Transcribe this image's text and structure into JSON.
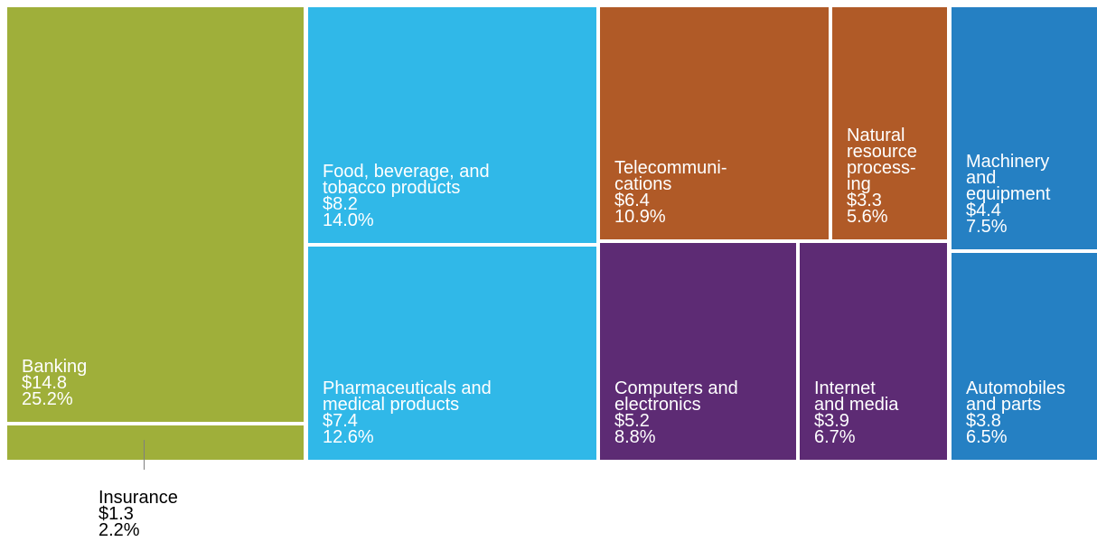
{
  "chart_data": {
    "type": "treemap",
    "unit_prefix": "$",
    "tiles": [
      {
        "key": "banking",
        "label_lines": [
          "Banking"
        ],
        "value": "$14.8",
        "share": "25.2%",
        "color": "#9faf3a"
      },
      {
        "key": "insurance",
        "label_lines": [
          "Insurance"
        ],
        "value": "$1.3",
        "share": "2.2%",
        "color": "#9faf3a",
        "label_outside": true
      },
      {
        "key": "food",
        "label_lines": [
          "Food, beverage, and",
          "tobacco products"
        ],
        "value": "$8.2",
        "share": "14.0%",
        "color": "#30b8e8"
      },
      {
        "key": "pharma",
        "label_lines": [
          "Pharmaceuticals and",
          "medical products"
        ],
        "value": "$7.4",
        "share": "12.6%",
        "color": "#30b8e8"
      },
      {
        "key": "telecom",
        "label_lines": [
          "Telecommuni-",
          "cations"
        ],
        "value": "$6.4",
        "share": "10.9%",
        "color": "#b05a27"
      },
      {
        "key": "natural",
        "label_lines": [
          "Natural",
          "resource",
          "process-",
          "ing"
        ],
        "value": "$3.3",
        "share": "5.6%",
        "color": "#b05a27"
      },
      {
        "key": "computers",
        "label_lines": [
          "Computers and",
          "electronics"
        ],
        "value": "$5.2",
        "share": "8.8%",
        "color": "#5d2b74"
      },
      {
        "key": "internet",
        "label_lines": [
          "Internet",
          "and media"
        ],
        "value": "$3.9",
        "share": "6.7%",
        "color": "#5d2b74"
      },
      {
        "key": "machinery",
        "label_lines": [
          "Machinery",
          "and",
          "equipment"
        ],
        "value": "$4.4",
        "share": "7.5%",
        "color": "#2580c3"
      },
      {
        "key": "automobiles",
        "label_lines": [
          "Automobiles",
          "and parts"
        ],
        "value": "$3.8",
        "share": "6.5%",
        "color": "#2580c3"
      }
    ]
  }
}
